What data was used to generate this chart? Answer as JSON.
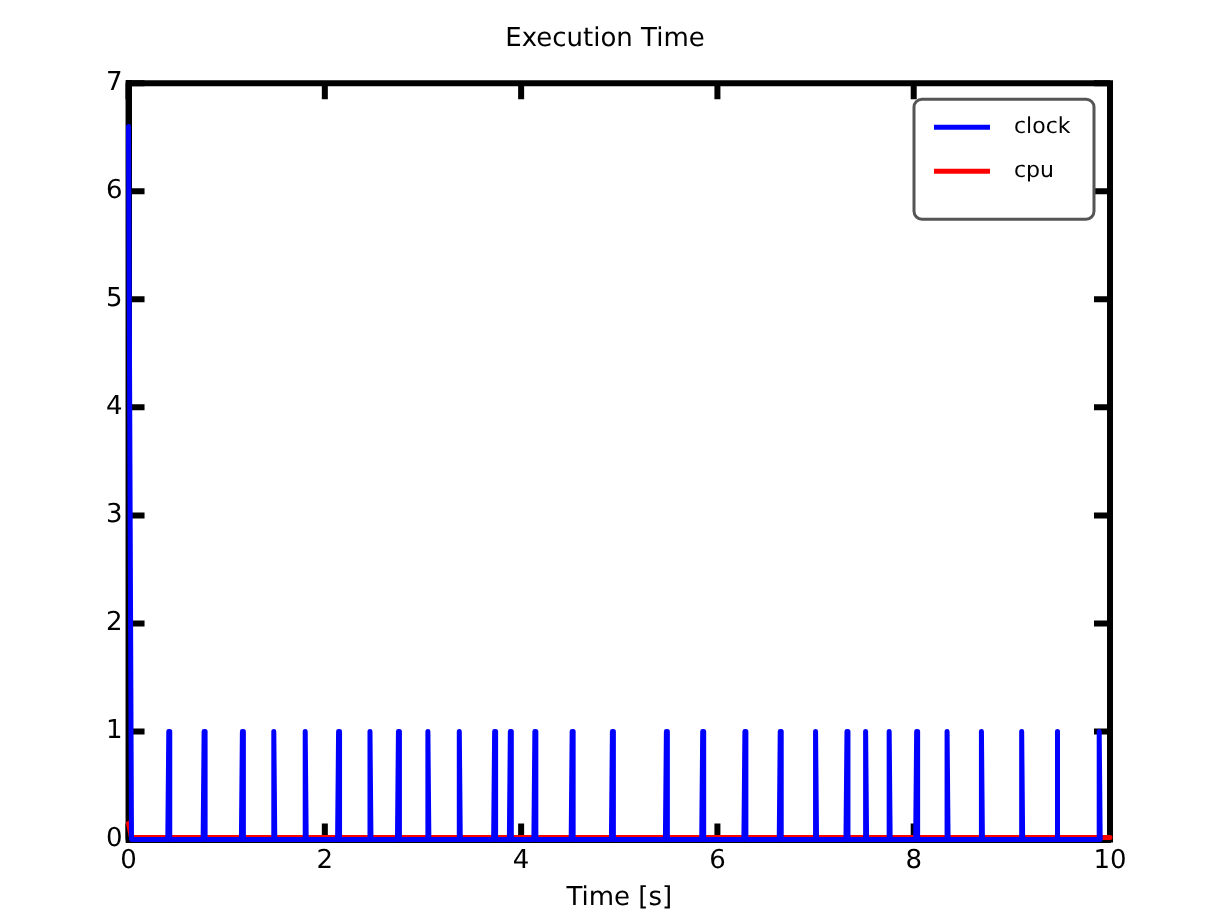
{
  "chart_data": {
    "type": "line",
    "title": "Execution Time",
    "xlabel": "Time [s]",
    "xlim": [
      0,
      10
    ],
    "xticks": [
      0,
      2,
      4,
      6,
      8,
      10
    ],
    "ylim": [
      0,
      7
    ],
    "yticks": [
      0,
      1,
      2,
      3,
      4,
      5,
      6,
      7
    ],
    "grid": false,
    "legend": "top right",
    "marker": "none",
    "line_style": "solid",
    "series": [
      {
        "name": "clock",
        "color": "#0000ff",
        "x": [
          0,
          0.03,
          0.4,
          0.41,
          0.42,
          0.76,
          0.77,
          0.78,
          1.15,
          1.16,
          1.17,
          1.47,
          1.48,
          1.49,
          1.79,
          1.8,
          1.81,
          2.13,
          2.14,
          2.15,
          2.45,
          2.46,
          2.47,
          2.74,
          2.75,
          2.76,
          3.04,
          3.05,
          3.06,
          3.36,
          3.37,
          3.38,
          3.72,
          3.73,
          3.74,
          3.88,
          3.89,
          3.9,
          4.13,
          4.14,
          4.15,
          4.51,
          4.52,
          4.53,
          4.92,
          4.93,
          4.94,
          5.47,
          5.48,
          5.49,
          5.84,
          5.85,
          5.86,
          6.27,
          6.28,
          6.29,
          6.63,
          6.64,
          6.65,
          6.99,
          7.0,
          7.01,
          7.31,
          7.32,
          7.33,
          7.5,
          7.51,
          7.52,
          7.74,
          7.75,
          7.76,
          8.02,
          8.03,
          8.04,
          8.33,
          8.34,
          8.35,
          8.68,
          8.69,
          8.7,
          9.09,
          9.1,
          9.11,
          9.45,
          9.46,
          9.47,
          9.88,
          9.89,
          9.9
        ],
        "values": [
          6.6,
          0,
          0,
          1,
          0,
          0,
          1,
          0,
          0,
          1,
          0,
          0,
          1,
          0,
          0,
          1,
          0,
          0,
          1,
          0,
          0,
          1,
          0,
          0,
          1,
          0,
          0,
          1,
          0,
          0,
          1,
          0,
          0,
          1,
          0,
          0,
          1,
          0,
          0,
          1,
          0,
          0,
          1,
          0,
          0,
          1,
          0,
          0,
          1,
          0,
          0,
          1,
          0,
          0,
          1,
          0,
          0,
          1,
          0,
          0,
          1,
          0,
          0,
          1,
          0,
          0,
          1,
          0,
          0,
          1,
          0,
          0,
          1,
          0,
          0,
          1,
          0,
          0,
          1,
          0,
          0,
          1,
          0,
          0,
          1,
          0,
          0,
          1,
          0
        ]
      },
      {
        "name": "cpu",
        "color": "#ff0000",
        "x": [
          0,
          0.03,
          10
        ],
        "values": [
          0.15,
          0.02,
          0.02
        ]
      }
    ]
  }
}
